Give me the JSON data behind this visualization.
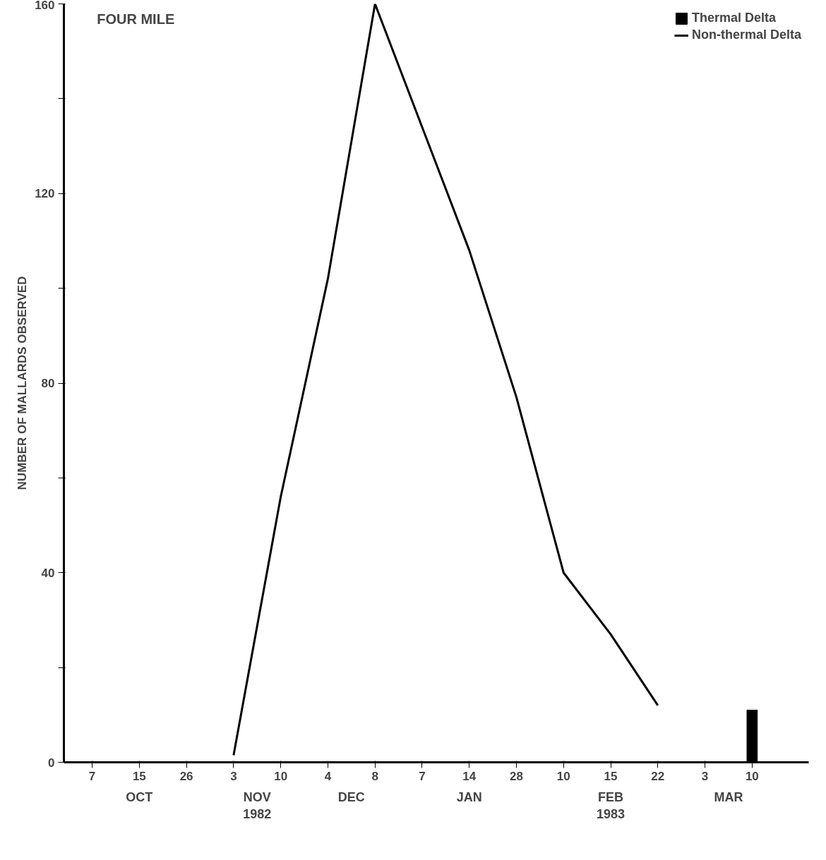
{
  "chart_data": {
    "type": "line",
    "title": "FOUR MILE",
    "ylabel": "NUMBER OF MALLARDS OBSERVED",
    "categories": [
      "7",
      "15",
      "26",
      "3",
      "10",
      "4",
      "8",
      "7",
      "14",
      "28",
      "10",
      "15",
      "22",
      "3",
      "10"
    ],
    "series": [
      {
        "name": "Thermal Delta",
        "type": "bar",
        "color": "#000000",
        "values": [
          null,
          null,
          null,
          null,
          null,
          null,
          null,
          null,
          null,
          null,
          null,
          null,
          null,
          null,
          11
        ]
      },
      {
        "name": "Non-thermal Delta",
        "color": "#000000",
        "values": [
          null,
          null,
          null,
          1.5,
          56,
          102,
          160,
          134,
          108,
          77,
          40,
          27,
          12,
          null,
          null
        ]
      }
    ],
    "ylim": [
      0,
      160
    ],
    "yticks": [
      0,
      {
        "value": 20,
        "label": null
      },
      40,
      {
        "value": 60,
        "label": null
      },
      80,
      {
        "value": 100,
        "label": null
      },
      120,
      {
        "value": 140,
        "label": null
      },
      160
    ],
    "grid": false,
    "legend": "top right",
    "marker": "none",
    "line_style": "solid",
    "annotations": [
      "OCT",
      "NOV\n1982",
      "DEC",
      "JAN",
      "FEB\n1983",
      "MAR"
    ]
  }
}
